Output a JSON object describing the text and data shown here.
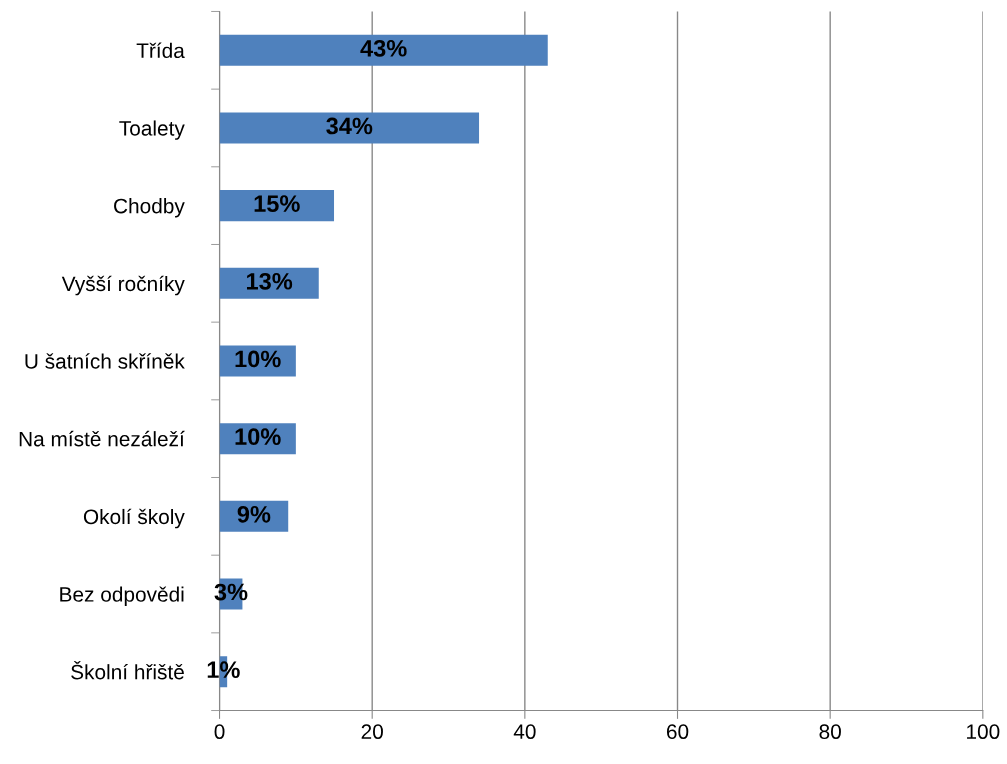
{
  "chart_data": {
    "type": "bar",
    "orientation": "horizontal",
    "categories": [
      "Třída",
      "Toalety",
      "Chodby",
      "Vyšší ročníky",
      "U šatních skříněk",
      "Na místě nezáleží",
      "Okolí školy",
      "Bez odpovědi",
      "Školní hřiště"
    ],
    "values": [
      43,
      34,
      15,
      13,
      10,
      10,
      9,
      3,
      1
    ],
    "value_labels": [
      "43%",
      "34%",
      "15%",
      "13%",
      "10%",
      "10%",
      "9%",
      "3%",
      "1%"
    ],
    "color": "#4f81bd",
    "xlim": [
      0,
      100
    ],
    "xticks": [
      0,
      20,
      40,
      60,
      80,
      100
    ],
    "grid": "x",
    "legend": false
  }
}
